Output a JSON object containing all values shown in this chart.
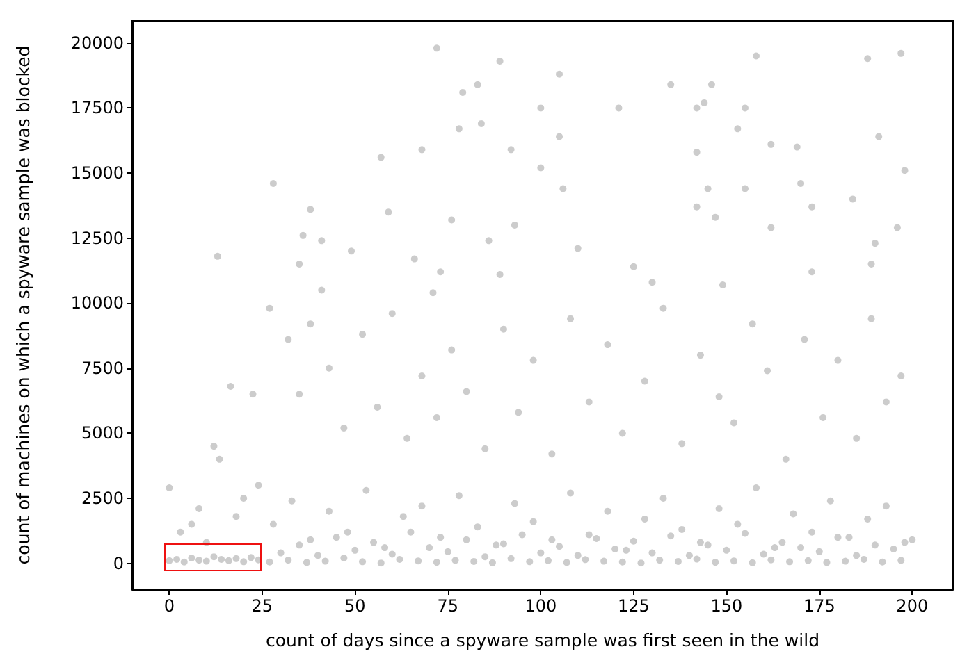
{
  "chart_data": {
    "type": "scatter",
    "xlabel": "count of days since a spyware sample was first seen in the wild",
    "ylabel": "count of machines on which a spyware sample was blocked",
    "xlim": [
      -10,
      211
    ],
    "ylim": [
      -1000,
      20850
    ],
    "xticks": [
      0,
      25,
      50,
      75,
      100,
      125,
      150,
      175,
      200
    ],
    "yticks": [
      0,
      2500,
      5000,
      7500,
      10000,
      12500,
      15000,
      17500,
      20000
    ],
    "grid": false,
    "marker": "circle",
    "color": "#808080",
    "x": [
      0,
      2,
      4,
      6,
      8,
      10,
      12,
      14,
      16,
      18,
      20,
      22,
      24,
      0,
      3,
      6,
      8,
      10,
      12,
      13,
      13.5,
      16.5,
      18,
      20,
      22.5,
      24,
      72,
      79,
      83,
      57,
      28,
      92,
      100,
      100,
      38,
      59,
      76,
      93,
      36,
      41,
      86,
      35,
      49,
      73,
      66,
      89,
      41,
      71,
      89,
      68,
      78,
      84,
      188,
      197,
      158,
      105,
      121,
      135,
      146,
      144,
      142,
      155,
      153,
      105,
      142,
      162,
      169,
      191,
      155,
      145,
      106,
      170,
      184,
      198,
      142,
      147,
      173,
      162,
      190,
      189,
      110,
      125,
      173,
      196,
      130,
      149,
      27,
      32,
      35,
      38,
      43,
      47,
      52,
      56,
      60,
      64,
      68,
      72,
      76,
      80,
      85,
      90,
      94,
      98,
      103,
      108,
      113,
      118,
      122,
      128,
      133,
      138,
      143,
      148,
      152,
      157,
      161,
      166,
      171,
      176,
      180,
      185,
      189,
      193,
      197,
      27,
      32,
      37,
      42,
      47,
      52,
      57,
      62,
      67,
      72,
      77,
      82,
      87,
      92,
      97,
      102,
      107,
      112,
      117,
      122,
      127,
      132,
      137,
      142,
      147,
      152,
      157,
      162,
      167,
      172,
      177,
      182,
      187,
      192,
      197,
      28,
      33,
      38,
      43,
      48,
      53,
      58,
      63,
      68,
      73,
      78,
      83,
      88,
      93,
      98,
      103,
      108,
      113,
      118,
      123,
      128,
      133,
      138,
      143,
      148,
      153,
      158,
      163,
      168,
      173,
      178,
      183,
      188,
      193,
      198,
      30,
      35,
      40,
      45,
      50,
      55,
      60,
      65,
      70,
      75,
      80,
      85,
      90,
      95,
      100,
      105,
      110,
      115,
      120,
      125,
      130,
      135,
      140,
      145,
      150,
      155,
      160,
      165,
      170,
      175,
      180,
      185,
      190,
      195,
      200
    ],
    "values": [
      100,
      150,
      50,
      200,
      120,
      80,
      250,
      150,
      100,
      180,
      60,
      220,
      130,
      2900,
      1200,
      1500,
      2100,
      800,
      4500,
      11800,
      4000,
      6800,
      1800,
      2500,
      6500,
      3000,
      19800,
      18100,
      18400,
      15600,
      14600,
      15900,
      15200,
      17500,
      13600,
      13500,
      13200,
      13000,
      12600,
      12400,
      12400,
      11500,
      12000,
      11200,
      11700,
      11100,
      10500,
      10400,
      19300,
      15900,
      16700,
      16900,
      19400,
      19600,
      19500,
      18800,
      17500,
      18400,
      18400,
      17700,
      17500,
      17500,
      16700,
      16400,
      15800,
      16100,
      16000,
      16400,
      14400,
      14400,
      14400,
      14600,
      14000,
      15100,
      13700,
      13300,
      13700,
      12900,
      12300,
      11500,
      12100,
      11400,
      11200,
      12900,
      10800,
      10700,
      9800,
      8600,
      6500,
      9200,
      7500,
      5200,
      8800,
      6000,
      9600,
      4800,
      7200,
      5600,
      8200,
      6600,
      4400,
      9000,
      5800,
      7800,
      4200,
      9400,
      6200,
      8400,
      5000,
      7000,
      9800,
      4600,
      8000,
      6400,
      5400,
      9200,
      7400,
      4000,
      8600,
      5600,
      7800,
      4800,
      9400,
      6200,
      7200,
      50,
      120,
      30,
      80,
      200,
      60,
      10,
      150,
      90,
      40,
      110,
      70,
      20,
      180,
      60,
      100,
      30,
      140,
      80,
      50,
      10,
      120,
      70,
      160,
      40,
      90,
      20,
      130,
      60,
      100,
      30,
      80,
      150,
      50,
      110,
      1500,
      2400,
      900,
      2000,
      1200,
      2800,
      600,
      1800,
      2200,
      1000,
      2600,
      1400,
      700,
      2300,
      1600,
      900,
      2700,
      1100,
      2000,
      500,
      1700,
      2500,
      1300,
      800,
      2100,
      1500,
      2900,
      600,
      1900,
      1200,
      2400,
      1000,
      1700,
      2200,
      800,
      400,
      700,
      300,
      1000,
      500,
      800,
      350,
      1200,
      600,
      450,
      900,
      250,
      750,
      1100,
      400,
      650,
      300,
      950,
      550,
      850,
      400,
      1050,
      300,
      700,
      500,
      1150,
      350,
      800,
      600,
      450,
      1000,
      300,
      700,
      550,
      900
    ]
  }
}
